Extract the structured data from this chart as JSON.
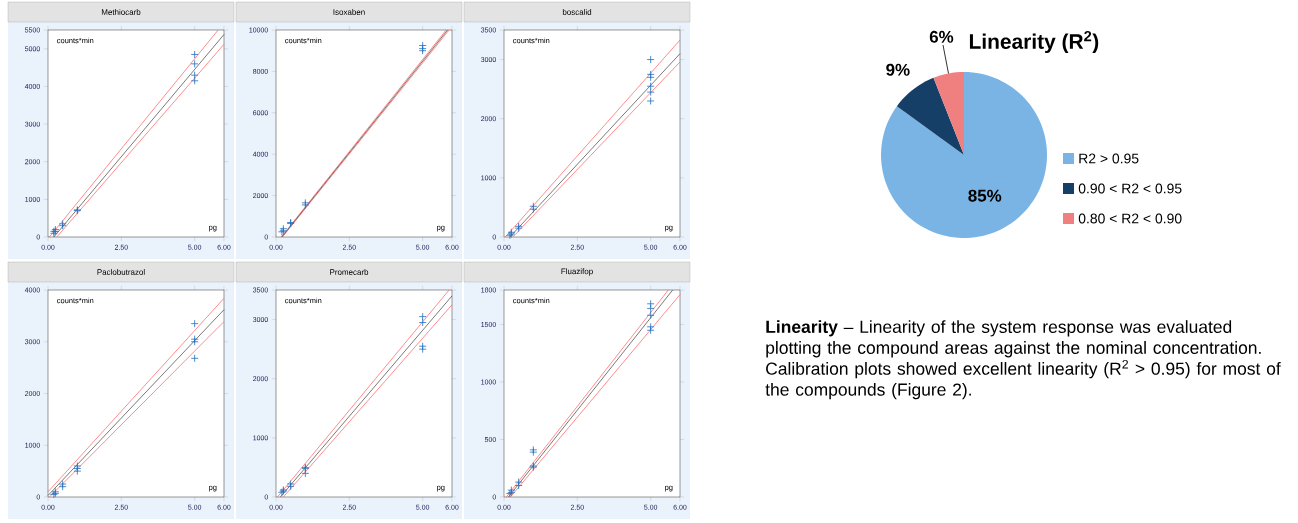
{
  "chart_data": [
    {
      "type": "scatter",
      "title": "Methiocarb",
      "xlabel": "pg",
      "ylabel": "counts*min",
      "marker": "cross",
      "xlim": [
        0,
        6
      ],
      "ylim": [
        0,
        5500
      ],
      "xticks": [
        {
          "value": 0,
          "label": "0.00"
        },
        {
          "value": 2.5,
          "label": "2.50"
        },
        {
          "value": 5,
          "label": "5.00"
        },
        {
          "value": 6,
          "label": "6.00"
        }
      ],
      "yticks": [
        0,
        1000,
        2000,
        3000,
        4000,
        5000,
        5500
      ],
      "series": [
        {
          "type": "scatter",
          "color": "#1f6fc0",
          "x": [
            0.2,
            0.2,
            0.25,
            0.25,
            0.5,
            0.5,
            1,
            1,
            5,
            5,
            5,
            5
          ],
          "values": [
            100,
            150,
            150,
            200,
            300,
            350,
            700,
            720,
            4850,
            4600,
            4300,
            4150
          ]
        },
        {
          "type": "line",
          "marker": "none",
          "color": "#404040",
          "x": [
            0.2,
            6
          ],
          "values": [
            0,
            5380
          ]
        },
        {
          "type": "line",
          "marker": "none",
          "color": "#ff5a5a",
          "x": [
            0.05,
            5.8
          ],
          "values": [
            0,
            5500
          ]
        },
        {
          "type": "line",
          "marker": "none",
          "color": "#ff5a5a",
          "x": [
            0.3,
            6
          ],
          "values": [
            0,
            5120
          ]
        }
      ]
    },
    {
      "type": "scatter",
      "title": "Isoxaben",
      "xlabel": "pg",
      "ylabel": "counts*min",
      "marker": "cross",
      "xlim": [
        0,
        6
      ],
      "ylim": [
        0,
        10000
      ],
      "xticks": [
        {
          "value": 0,
          "label": "0.00"
        },
        {
          "value": 2.5,
          "label": "2.50"
        },
        {
          "value": 5,
          "label": "5.00"
        },
        {
          "value": 6,
          "label": "6.00"
        }
      ],
      "yticks": [
        0,
        2000,
        4000,
        6000,
        8000,
        10000
      ],
      "series": [
        {
          "type": "scatter",
          "color": "#1f6fc0",
          "x": [
            0.2,
            0.25,
            0.25,
            0.5,
            0.5,
            1,
            1,
            5,
            5,
            5
          ],
          "values": [
            250,
            300,
            400,
            650,
            700,
            1550,
            1650,
            9250,
            9100,
            9000
          ]
        },
        {
          "type": "line",
          "marker": "none",
          "color": "#ff5a5a",
          "x": [
            0.18,
            5.8
          ],
          "values": [
            0,
            10000
          ]
        },
        {
          "type": "line",
          "marker": "none",
          "color": "#ff5a5a",
          "x": [
            0.22,
            5.9
          ],
          "values": [
            0,
            10000
          ]
        },
        {
          "type": "line",
          "marker": "none",
          "color": "#404040",
          "x": [
            0.2,
            5.85
          ],
          "values": [
            0,
            10000
          ]
        }
      ]
    },
    {
      "type": "scatter",
      "title": "boscalid",
      "xlabel": "pg",
      "ylabel": "counts*min",
      "marker": "cross",
      "xlim": [
        0,
        6
      ],
      "ylim": [
        0,
        3500
      ],
      "xticks": [
        {
          "value": 0,
          "label": "0.00"
        },
        {
          "value": 2.5,
          "label": "2.50"
        },
        {
          "value": 5,
          "label": "5.00"
        },
        {
          "value": 6,
          "label": "6.00"
        }
      ],
      "yticks": [
        0,
        1000,
        2000,
        3000,
        3500
      ],
      "series": [
        {
          "type": "scatter",
          "color": "#1f6fc0",
          "x": [
            0.2,
            0.25,
            0.25,
            0.5,
            0.5,
            1,
            1,
            5,
            5,
            5,
            5,
            5,
            5
          ],
          "values": [
            30,
            50,
            80,
            150,
            180,
            470,
            520,
            3000,
            2750,
            2700,
            2550,
            2450,
            2300
          ]
        },
        {
          "type": "line",
          "marker": "none",
          "color": "#404040",
          "x": [
            0.2,
            6
          ],
          "values": [
            0,
            3100
          ]
        },
        {
          "type": "line",
          "marker": "none",
          "color": "#ff5a5a",
          "x": [
            0.05,
            6
          ],
          "values": [
            0,
            3330
          ]
        },
        {
          "type": "line",
          "marker": "none",
          "color": "#ff5a5a",
          "x": [
            0.3,
            6
          ],
          "values": [
            0,
            2960
          ]
        }
      ]
    },
    {
      "type": "scatter",
      "title": "Paclobutrazol",
      "xlabel": "pg",
      "ylabel": "counts*min",
      "marker": "cross",
      "xlim": [
        0,
        6
      ],
      "ylim": [
        0,
        4000
      ],
      "xticks": [
        {
          "value": 0,
          "label": "0.00"
        },
        {
          "value": 2.5,
          "label": "2.50"
        },
        {
          "value": 5,
          "label": "5.00"
        },
        {
          "value": 6,
          "label": "6.00"
        }
      ],
      "yticks": [
        0,
        1000,
        2000,
        3000,
        4000
      ],
      "series": [
        {
          "type": "scatter",
          "color": "#1f6fc0",
          "x": [
            0.2,
            0.25,
            0.25,
            0.5,
            0.5,
            1,
            1,
            1,
            5,
            5,
            5,
            5
          ],
          "values": [
            50,
            70,
            100,
            200,
            250,
            500,
            550,
            600,
            3350,
            3050,
            3000,
            2680
          ]
        },
        {
          "type": "line",
          "marker": "none",
          "color": "#404040",
          "x": [
            0,
            6
          ],
          "values": [
            30,
            3620
          ]
        },
        {
          "type": "line",
          "marker": "none",
          "color": "#ff5a5a",
          "x": [
            0,
            6
          ],
          "values": [
            100,
            3840
          ]
        },
        {
          "type": "line",
          "marker": "none",
          "color": "#ff5a5a",
          "x": [
            0.05,
            6
          ],
          "values": [
            0,
            3390
          ]
        }
      ]
    },
    {
      "type": "scatter",
      "title": "Promecarb",
      "xlabel": "pg",
      "ylabel": "counts*min",
      "marker": "cross",
      "xlim": [
        0,
        6
      ],
      "ylim": [
        0,
        3500
      ],
      "xticks": [
        {
          "value": 0,
          "label": "0.00"
        },
        {
          "value": 2.5,
          "label": "2.50"
        },
        {
          "value": 5,
          "label": "5.00"
        },
        {
          "value": 6,
          "label": "6.00"
        }
      ],
      "yticks": [
        0,
        1000,
        2000,
        3000,
        3500
      ],
      "series": [
        {
          "type": "scatter",
          "color": "#1f6fc0",
          "x": [
            0.2,
            0.25,
            0.25,
            0.5,
            0.5,
            1,
            1,
            1,
            5,
            5,
            5,
            5
          ],
          "values": [
            80,
            100,
            120,
            180,
            220,
            400,
            480,
            500,
            3050,
            2950,
            2550,
            2500
          ]
        },
        {
          "type": "line",
          "marker": "none",
          "color": "#404040",
          "x": [
            0.15,
            6
          ],
          "values": [
            0,
            3400
          ]
        },
        {
          "type": "line",
          "marker": "none",
          "color": "#ff5a5a",
          "x": [
            0.05,
            5.9
          ],
          "values": [
            0,
            3500
          ]
        },
        {
          "type": "line",
          "marker": "none",
          "color": "#ff5a5a",
          "x": [
            0.25,
            6
          ],
          "values": [
            0,
            3250
          ]
        }
      ]
    },
    {
      "type": "scatter",
      "title": "Fluazifop",
      "xlabel": "pg",
      "ylabel": "counts*min",
      "marker": "cross",
      "xlim": [
        0,
        6
      ],
      "ylim": [
        0,
        1800
      ],
      "xticks": [
        {
          "value": 0,
          "label": "0.00"
        },
        {
          "value": 2.5,
          "label": "2.50"
        },
        {
          "value": 5,
          "label": "5.00"
        },
        {
          "value": 6,
          "label": "6.00"
        }
      ],
      "yticks": [
        0,
        500,
        1000,
        1500,
        1800
      ],
      "series": [
        {
          "type": "scatter",
          "color": "#1f6fc0",
          "x": [
            0.2,
            0.25,
            0.25,
            0.5,
            0.5,
            1,
            1,
            1,
            1,
            5,
            5,
            5,
            5,
            5
          ],
          "values": [
            30,
            40,
            60,
            100,
            130,
            260,
            270,
            390,
            410,
            1680,
            1640,
            1580,
            1480,
            1450
          ]
        },
        {
          "type": "line",
          "marker": "none",
          "color": "#404040",
          "x": [
            0.15,
            5.75
          ],
          "values": [
            0,
            1800
          ]
        },
        {
          "type": "line",
          "marker": "none",
          "color": "#ff5a5a",
          "x": [
            0.08,
            5.6
          ],
          "values": [
            0,
            1800
          ]
        },
        {
          "type": "line",
          "marker": "none",
          "color": "#ff5a5a",
          "x": [
            0.22,
            6
          ],
          "values": [
            0,
            1760
          ]
        }
      ]
    },
    {
      "type": "pie",
      "title": "Linearity (R$^{2}$)",
      "categories": [
        "R2 > 0.95",
        "0.90 < R2 < 0.95",
        "0.80 < R2 < 0.90"
      ],
      "values": [
        85,
        9,
        6
      ],
      "colors": [
        "#7ab4e4",
        "#153f66",
        "#f08080"
      ],
      "value_labels": [
        "85%",
        "9%",
        "6%"
      ],
      "legend": "right"
    },
    {
      "type": "other",
      "annotations": [
        "**Linearity** – Linearity of the system response was evaluated plotting the compound areas against the nominal concentration. Calibration plots showed excellent linearity (R$^{2}$ > 0.95) for most of the compounds (Figure 2)."
      ]
    }
  ]
}
